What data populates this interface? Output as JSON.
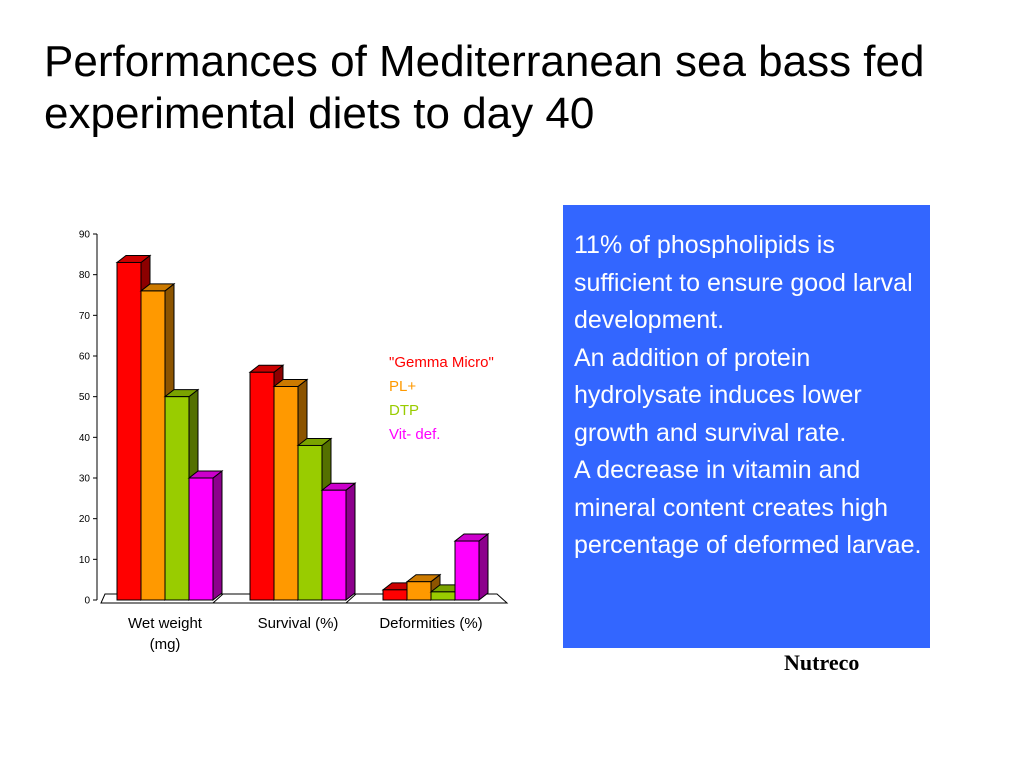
{
  "title": "Performances of Mediterranean sea bass fed experimental diets to day 40",
  "info_box": {
    "lines": [
      "11% of phospholipids is sufficient to ensure good larval development.",
      "An addition of protein hydrolysate induces lower growth and survival rate.",
      "A decrease in vitamin and mineral content creates high percentage of deformed larvae."
    ],
    "color": "#3366ff"
  },
  "credit": "Nutreco",
  "chart_data": {
    "type": "bar",
    "style": "3d-clustered",
    "categories": [
      "Wet weight (mg)",
      "Survival (%)",
      "Deformities (%)"
    ],
    "series": [
      {
        "name": "\"Gemma Micro\"",
        "values": [
          83,
          56,
          2.5
        ],
        "color": "#ff0000"
      },
      {
        "name": "PL+",
        "values": [
          76,
          52.5,
          4.5
        ],
        "color": "#ff9900"
      },
      {
        "name": "DTP",
        "values": [
          50,
          38,
          2
        ],
        "color": "#99cc00"
      },
      {
        "name": "Vit- def.",
        "values": [
          30,
          27,
          14.5
        ],
        "color": "#ff00ff"
      }
    ],
    "yticks": [
      0,
      10,
      20,
      30,
      40,
      50,
      60,
      70,
      80,
      90
    ],
    "ylim": [
      0,
      90
    ],
    "legend_placement": "right",
    "grid": false
  }
}
